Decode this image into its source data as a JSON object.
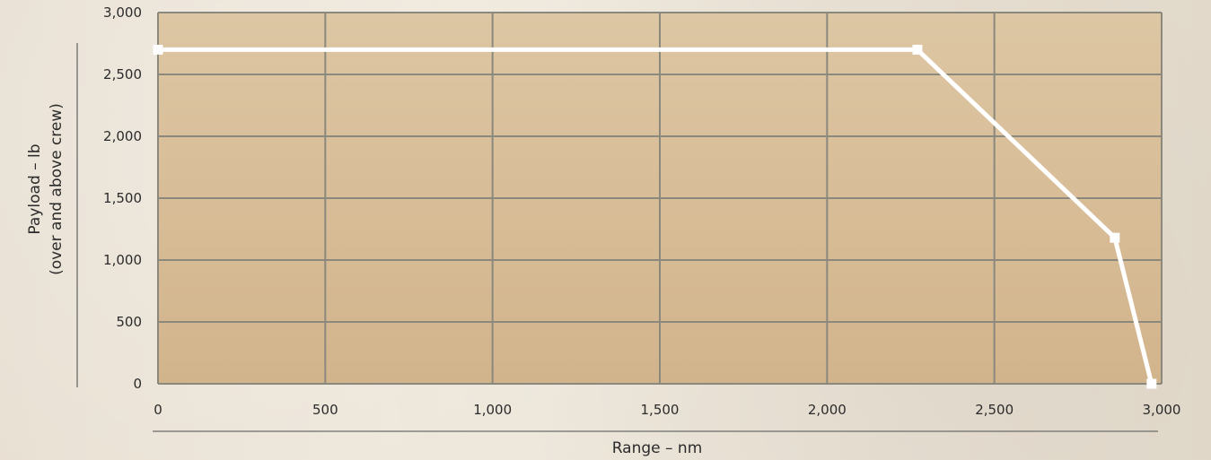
{
  "chart_data": {
    "type": "area",
    "xlabel": "Range – nm",
    "ylabel_lines": [
      "Payload – lb",
      "(over and above crew)"
    ],
    "xlim": [
      0,
      3000
    ],
    "ylim": [
      0,
      3000
    ],
    "xticks": [
      0,
      500,
      1000,
      1500,
      2000,
      2500,
      3000
    ],
    "yticks": [
      0,
      500,
      1000,
      1500,
      2000,
      2500,
      3000
    ],
    "xtick_labels": [
      "0",
      "500",
      "1,000",
      "1,500",
      "2,000",
      "2,500",
      "3,000"
    ],
    "ytick_labels": [
      "0",
      "500",
      "1,000",
      "1,500",
      "2,000",
      "2,500",
      "3,000"
    ],
    "grid": true,
    "series": [
      {
        "x": [
          0,
          2270,
          2860,
          2970
        ],
        "y": [
          2700,
          2700,
          1180,
          0
        ]
      }
    ]
  },
  "colors": {
    "plot_bg_top": "#ddc6a3",
    "plot_bg_bottom": "#d2b48c",
    "grid": "#8b887e",
    "line": "#ffffff",
    "tick_text": "#2b2b2b"
  }
}
